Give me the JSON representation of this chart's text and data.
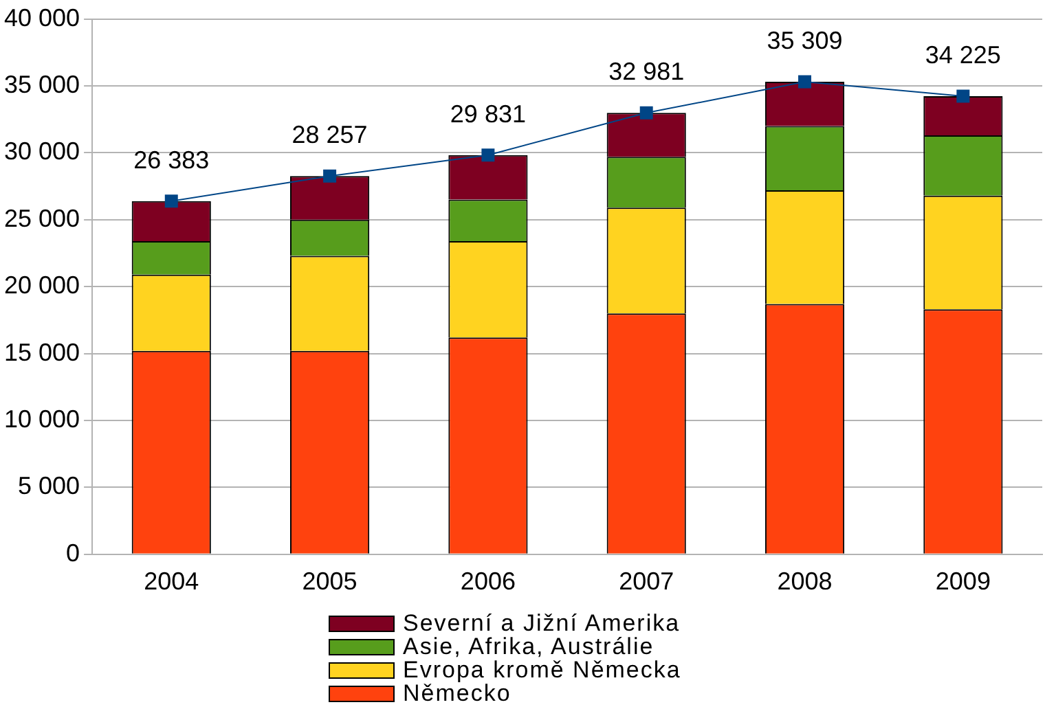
{
  "chart_data": {
    "type": "bar",
    "stacked": true,
    "categories": [
      "2004",
      "2005",
      "2006",
      "2007",
      "2008",
      "2009"
    ],
    "series": [
      {
        "name": "Německo",
        "color": "#ff420e",
        "values": [
          15200,
          15200,
          16200,
          18000,
          18700,
          18300
        ]
      },
      {
        "name": "Evropa kromě Německa",
        "color": "#ffd320",
        "values": [
          5700,
          7100,
          7200,
          7900,
          8500,
          8500
        ]
      },
      {
        "name": "Asie, Afrika, Austrálie",
        "color": "#579d1c",
        "values": [
          2500,
          2700,
          3100,
          3800,
          4800,
          4500
        ]
      },
      {
        "name": "Severní a Jižní Amerika",
        "color": "#7e0021",
        "values": [
          2983,
          3257,
          3331,
          3281,
          3309,
          2925
        ]
      },
      {
        "type": "line",
        "color": "#004586",
        "marker": "square",
        "values": [
          26383,
          28257,
          29831,
          32981,
          35309,
          34225
        ],
        "value_labels": [
          "26 383",
          "28 257",
          "29 831",
          "32 981",
          "35 309",
          "34 225"
        ]
      }
    ],
    "ylim": [
      0,
      40000
    ],
    "yticks": [
      {
        "value": 0,
        "label": "0"
      },
      {
        "value": 5000,
        "label": "5 000"
      },
      {
        "value": 10000,
        "label": "10 000"
      },
      {
        "value": 15000,
        "label": "15 000"
      },
      {
        "value": 20000,
        "label": "20 000"
      },
      {
        "value": 25000,
        "label": "25 000"
      },
      {
        "value": 30000,
        "label": "30 000"
      },
      {
        "value": 35000,
        "label": "35 000"
      },
      {
        "value": 40000,
        "label": "40 000"
      }
    ],
    "grid": "y",
    "legend": "bottom"
  }
}
